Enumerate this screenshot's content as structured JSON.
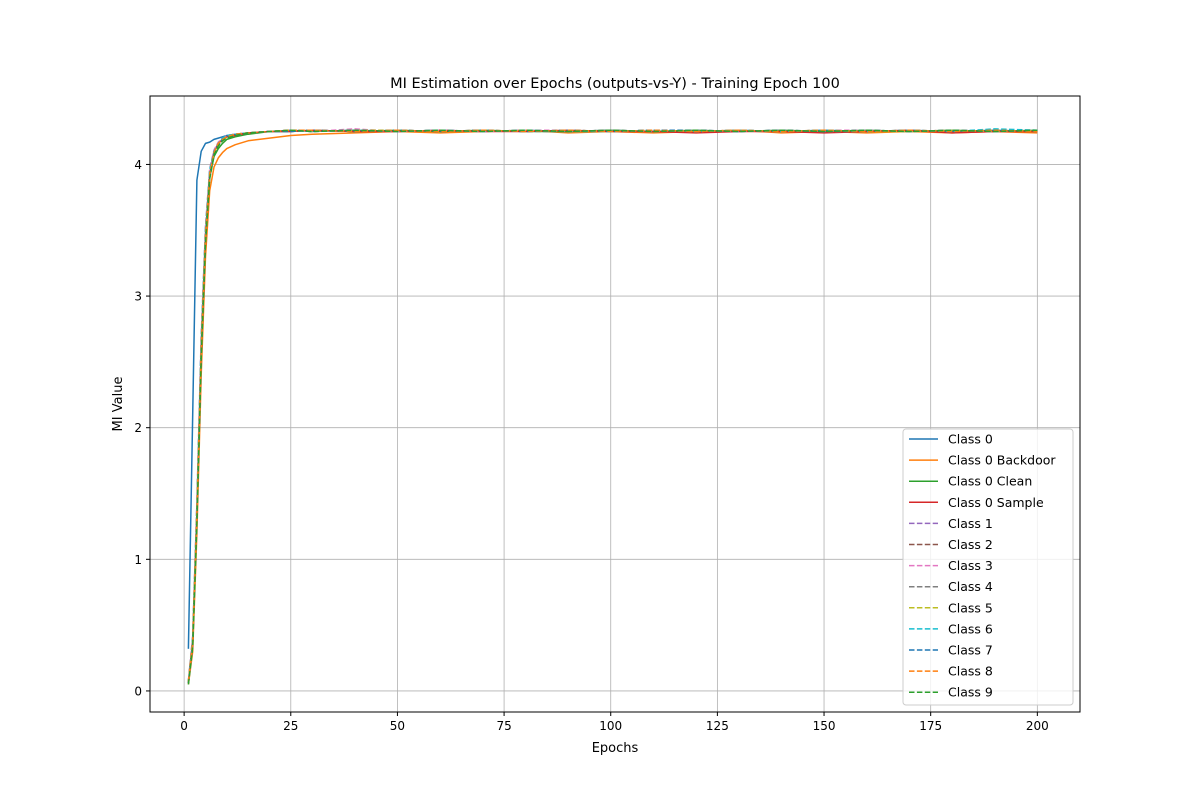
{
  "chart_data": {
    "type": "line",
    "title": "MI Estimation over Epochs (outputs-vs-Y) - Training Epoch 100",
    "xlabel": "Epochs",
    "ylabel": "MI Value",
    "xlim": [
      -8,
      210
    ],
    "ylim": [
      -0.16,
      4.52
    ],
    "x_ticks": [
      0,
      25,
      50,
      75,
      100,
      125,
      150,
      175,
      200
    ],
    "y_ticks": [
      0,
      1,
      2,
      3,
      4
    ],
    "grid": true,
    "legend_position": "lower right",
    "x": [
      1,
      2,
      3,
      4,
      5,
      6,
      7,
      8,
      9,
      10,
      12,
      15,
      20,
      25,
      30,
      40,
      50,
      60,
      70,
      80,
      90,
      100,
      110,
      120,
      130,
      140,
      150,
      160,
      170,
      180,
      190,
      200
    ],
    "series": [
      {
        "name": "Class 0",
        "style": "solid",
        "color": "#1f77b4",
        "values": [
          0.32,
          2.1,
          3.88,
          4.1,
          4.16,
          4.17,
          4.19,
          4.2,
          4.21,
          4.22,
          4.23,
          4.24,
          4.25,
          4.26,
          4.25,
          4.26,
          4.25,
          4.26,
          4.25,
          4.26,
          4.25,
          4.26,
          4.25,
          4.25,
          4.26,
          4.25,
          4.26,
          4.25,
          4.26,
          4.25,
          4.26,
          4.25
        ]
      },
      {
        "name": "Class 0 Backdoor",
        "style": "solid",
        "color": "#ff7f0e",
        "values": [
          0.05,
          0.3,
          1.2,
          2.4,
          3.3,
          3.8,
          3.98,
          4.05,
          4.09,
          4.12,
          4.15,
          4.18,
          4.2,
          4.22,
          4.23,
          4.24,
          4.25,
          4.24,
          4.25,
          4.26,
          4.24,
          4.25,
          4.24,
          4.25,
          4.26,
          4.24,
          4.25,
          4.24,
          4.25,
          4.24,
          4.25,
          4.24
        ]
      },
      {
        "name": "Class 0 Clean",
        "style": "solid",
        "color": "#2ca02c",
        "values": [
          0.07,
          0.38,
          1.35,
          2.6,
          3.45,
          3.9,
          4.06,
          4.12,
          4.16,
          4.19,
          4.21,
          4.23,
          4.25,
          4.25,
          4.26,
          4.25,
          4.26,
          4.25,
          4.26,
          4.25,
          4.25,
          4.26,
          4.25,
          4.26,
          4.25,
          4.26,
          4.25,
          4.26,
          4.25,
          4.26,
          4.25,
          4.26
        ]
      },
      {
        "name": "Class 0 Sample",
        "style": "solid",
        "color": "#d62728",
        "values": [
          0.06,
          0.36,
          1.32,
          2.55,
          3.42,
          3.92,
          4.1,
          4.16,
          4.19,
          4.21,
          4.22,
          4.24,
          4.25,
          4.25,
          4.26,
          4.25,
          4.25,
          4.26,
          4.25,
          4.25,
          4.26,
          4.25,
          4.25,
          4.24,
          4.25,
          4.25,
          4.24,
          4.25,
          4.26,
          4.24,
          4.25,
          4.25
        ]
      },
      {
        "name": "Class 1",
        "style": "dashed",
        "color": "#9467bd",
        "values": [
          0.07,
          0.4,
          1.4,
          2.65,
          3.5,
          3.95,
          4.1,
          4.16,
          4.19,
          4.21,
          4.23,
          4.24,
          4.25,
          4.26,
          4.25,
          4.26,
          4.25,
          4.26,
          4.25,
          4.26,
          4.25,
          4.26,
          4.25,
          4.26,
          4.25,
          4.26,
          4.25,
          4.26,
          4.25,
          4.26,
          4.25,
          4.26
        ]
      },
      {
        "name": "Class 2",
        "style": "dashed",
        "color": "#8c564b",
        "values": [
          0.06,
          0.37,
          1.36,
          2.6,
          3.47,
          3.93,
          4.09,
          4.15,
          4.18,
          4.21,
          4.22,
          4.24,
          4.25,
          4.26,
          4.26,
          4.25,
          4.26,
          4.25,
          4.26,
          4.25,
          4.26,
          4.25,
          4.26,
          4.25,
          4.26,
          4.25,
          4.26,
          4.25,
          4.26,
          4.25,
          4.26,
          4.25
        ]
      },
      {
        "name": "Class 3",
        "style": "dashed",
        "color": "#e377c2",
        "values": [
          0.08,
          0.42,
          1.44,
          2.7,
          3.53,
          3.97,
          4.11,
          4.17,
          4.2,
          4.22,
          4.23,
          4.24,
          4.25,
          4.26,
          4.25,
          4.27,
          4.25,
          4.26,
          4.25,
          4.26,
          4.26,
          4.25,
          4.26,
          4.25,
          4.26,
          4.25,
          4.26,
          4.26,
          4.25,
          4.26,
          4.25,
          4.26
        ]
      },
      {
        "name": "Class 4",
        "style": "dashed",
        "color": "#7f7f7f",
        "values": [
          0.06,
          0.35,
          1.3,
          2.55,
          3.43,
          3.91,
          4.08,
          4.15,
          4.19,
          4.21,
          4.22,
          4.24,
          4.25,
          4.25,
          4.26,
          4.25,
          4.26,
          4.25,
          4.26,
          4.25,
          4.25,
          4.26,
          4.25,
          4.26,
          4.25,
          4.26,
          4.25,
          4.25,
          4.26,
          4.25,
          4.26,
          4.25
        ]
      },
      {
        "name": "Class 5",
        "style": "dashed",
        "color": "#bcbd22",
        "values": [
          0.07,
          0.39,
          1.38,
          2.62,
          3.48,
          3.94,
          4.09,
          4.16,
          4.19,
          4.21,
          4.23,
          4.24,
          4.25,
          4.26,
          4.25,
          4.26,
          4.26,
          4.25,
          4.26,
          4.25,
          4.26,
          4.25,
          4.26,
          4.25,
          4.26,
          4.25,
          4.26,
          4.25,
          4.25,
          4.26,
          4.25,
          4.26
        ]
      },
      {
        "name": "Class 6",
        "style": "dashed",
        "color": "#17becf",
        "values": [
          0.07,
          0.41,
          1.42,
          2.68,
          3.52,
          3.96,
          4.1,
          4.16,
          4.2,
          4.22,
          4.23,
          4.24,
          4.25,
          4.26,
          4.25,
          4.26,
          4.25,
          4.26,
          4.25,
          4.26,
          4.25,
          4.25,
          4.26,
          4.25,
          4.26,
          4.25,
          4.26,
          4.25,
          4.26,
          4.25,
          4.27,
          4.26
        ]
      },
      {
        "name": "Class 7",
        "style": "dashed",
        "color": "#1f77b4",
        "values": [
          0.06,
          0.36,
          1.34,
          2.58,
          3.45,
          3.92,
          4.09,
          4.15,
          4.19,
          4.21,
          4.22,
          4.24,
          4.25,
          4.25,
          4.26,
          4.25,
          4.26,
          4.25,
          4.26,
          4.25,
          4.26,
          4.25,
          4.26,
          4.26,
          4.25,
          4.26,
          4.25,
          4.26,
          4.25,
          4.26,
          4.25,
          4.26
        ]
      },
      {
        "name": "Class 8",
        "style": "dashed",
        "color": "#ff7f0e",
        "values": [
          0.07,
          0.38,
          1.37,
          2.61,
          3.47,
          3.93,
          4.09,
          4.16,
          4.19,
          4.21,
          4.23,
          4.24,
          4.25,
          4.26,
          4.26,
          4.25,
          4.26,
          4.25,
          4.26,
          4.25,
          4.26,
          4.25,
          4.26,
          4.25,
          4.26,
          4.25,
          4.26,
          4.25,
          4.26,
          4.25,
          4.26,
          4.25
        ]
      },
      {
        "name": "Class 9",
        "style": "dashed",
        "color": "#2ca02c",
        "values": [
          0.05,
          0.33,
          1.28,
          2.52,
          3.4,
          3.89,
          4.07,
          4.14,
          4.18,
          4.2,
          4.22,
          4.24,
          4.25,
          4.26,
          4.25,
          4.26,
          4.25,
          4.26,
          4.25,
          4.26,
          4.25,
          4.26,
          4.25,
          4.26,
          4.25,
          4.26,
          4.25,
          4.26,
          4.25,
          4.26,
          4.25,
          4.26
        ]
      }
    ]
  }
}
